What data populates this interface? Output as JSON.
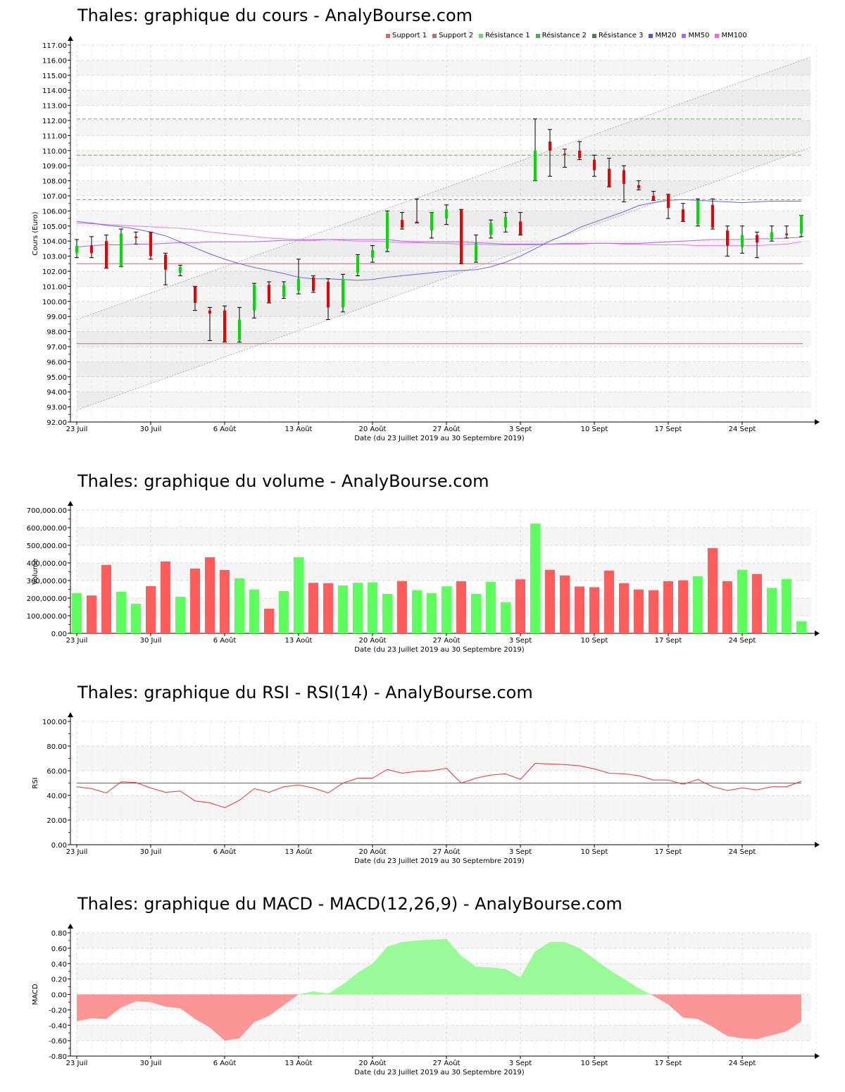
{
  "titles": {
    "price": "Thales: graphique du cours - AnalyBourse.com",
    "volume": "Thales: graphique du volume - AnalyBourse.com",
    "rsi": "Thales: graphique du RSI - RSI(14) - AnalyBourse.com",
    "macd": "Thales: graphique du MACD - MACD(12,26,9) - AnalyBourse.com"
  },
  "x_axis": {
    "label": "Date (du 23 Juillet 2019 au 30 Septembre 2019)",
    "ticks": [
      {
        "label": "23 Juil",
        "index": 0
      },
      {
        "label": "30 Juil",
        "index": 5
      },
      {
        "label": "6 Août",
        "index": 10
      },
      {
        "label": "13 Août",
        "index": 15
      },
      {
        "label": "20 Août",
        "index": 20
      },
      {
        "label": "27 Août",
        "index": 25
      },
      {
        "label": "3 Sept",
        "index": 30
      },
      {
        "label": "10 Sept",
        "index": 35
      },
      {
        "label": "17 Sept",
        "index": 40
      },
      {
        "label": "24 Sept",
        "index": 45
      }
    ]
  },
  "legend": [
    {
      "label": "Support 1",
      "color": "#d46a6a"
    },
    {
      "label": "Support 2",
      "color": "#b87070"
    },
    {
      "label": "Résistance 1",
      "color": "#66dd66"
    },
    {
      "label": "Résistance 2",
      "color": "#55aa55"
    },
    {
      "label": "Résistance 3",
      "color": "#448844"
    },
    {
      "label": "MM20",
      "color": "#5555ee"
    },
    {
      "label": "MM50",
      "color": "#aa66ee"
    },
    {
      "label": "MM100",
      "color": "#ee66ee"
    }
  ],
  "colors": {
    "up": "#00dd00",
    "down": "#ee0000",
    "vol_up": "#5cff5c",
    "vol_down": "#ff5c5c",
    "rsi_line": "#ee3333",
    "macd_pos": "#98fb98",
    "macd_neg": "#fa9696",
    "support": "#c07070",
    "resistance": "#66aa66"
  },
  "chart_data": [
    {
      "type": "candlestick",
      "title": "Thales: graphique du cours - AnalyBourse.com",
      "xlabel": "Date (du 23 Juillet 2019 au 30 Septembre 2019)",
      "ylabel": "Cours (Euro)",
      "ylim": [
        92,
        117
      ],
      "yticks": [
        "92.00",
        "93.00",
        "94.00",
        "95.00",
        "96.00",
        "97.00",
        "98.00",
        "99.00",
        "100.00",
        "101.00",
        "102.00",
        "103.00",
        "104.00",
        "105.00",
        "106.00",
        "107.00",
        "108.00",
        "109.00",
        "110.00",
        "111.00",
        "112.00",
        "113.00",
        "114.00",
        "115.00",
        "116.00",
        "117.00"
      ],
      "support_levels": [
        102.5,
        97.2
      ],
      "resistance_levels": [
        106.75,
        109.7,
        112.1
      ],
      "channel": {
        "upper_start": 98.8,
        "upper_end": 116.2,
        "lower_start": 92.8,
        "lower_end": 110.2
      },
      "candles": [
        {
          "o": 103.2,
          "h": 104.1,
          "l": 102.9,
          "c": 103.7
        },
        {
          "o": 103.7,
          "h": 104.3,
          "l": 102.9,
          "c": 103.2
        },
        {
          "o": 104.0,
          "h": 104.4,
          "l": 102.2,
          "c": 102.2
        },
        {
          "o": 102.3,
          "h": 104.8,
          "l": 102.3,
          "c": 104.5
        },
        {
          "o": 104.3,
          "h": 104.6,
          "l": 103.8,
          "c": 104.2
        },
        {
          "o": 104.6,
          "h": 104.6,
          "l": 102.8,
          "c": 103.0
        },
        {
          "o": 103.1,
          "h": 103.2,
          "l": 101.1,
          "c": 102.1
        },
        {
          "o": 101.9,
          "h": 102.4,
          "l": 101.7,
          "c": 102.3
        },
        {
          "o": 101.0,
          "h": 101.0,
          "l": 99.4,
          "c": 99.9
        },
        {
          "o": 99.4,
          "h": 99.6,
          "l": 97.4,
          "c": 99.2
        },
        {
          "o": 99.4,
          "h": 99.7,
          "l": 97.3,
          "c": 97.3
        },
        {
          "o": 97.4,
          "h": 99.6,
          "l": 97.3,
          "c": 98.8
        },
        {
          "o": 99.4,
          "h": 101.2,
          "l": 98.9,
          "c": 101.1
        },
        {
          "o": 101.1,
          "h": 101.3,
          "l": 99.9,
          "c": 99.9
        },
        {
          "o": 100.3,
          "h": 101.3,
          "l": 100.2,
          "c": 101.1
        },
        {
          "o": 100.7,
          "h": 102.8,
          "l": 100.5,
          "c": 101.5
        },
        {
          "o": 101.6,
          "h": 101.7,
          "l": 100.6,
          "c": 100.7
        },
        {
          "o": 101.3,
          "h": 101.5,
          "l": 98.8,
          "c": 99.6
        },
        {
          "o": 99.6,
          "h": 101.8,
          "l": 99.3,
          "c": 101.5
        },
        {
          "o": 101.9,
          "h": 103.1,
          "l": 101.7,
          "c": 103.0
        },
        {
          "o": 102.9,
          "h": 103.7,
          "l": 102.6,
          "c": 103.4
        },
        {
          "o": 103.5,
          "h": 106.0,
          "l": 103.3,
          "c": 105.9
        },
        {
          "o": 105.4,
          "h": 105.9,
          "l": 104.8,
          "c": 104.9
        },
        {
          "o": 105.3,
          "h": 106.8,
          "l": 105.2,
          "c": 105.2
        },
        {
          "o": 104.7,
          "h": 105.9,
          "l": 104.2,
          "c": 105.9
        },
        {
          "o": 105.5,
          "h": 106.4,
          "l": 105.1,
          "c": 106.1
        },
        {
          "o": 106.1,
          "h": 106.1,
          "l": 102.5,
          "c": 102.5
        },
        {
          "o": 102.7,
          "h": 104.4,
          "l": 102.6,
          "c": 103.9
        },
        {
          "o": 104.4,
          "h": 105.4,
          "l": 104.2,
          "c": 105.2
        },
        {
          "o": 104.9,
          "h": 105.9,
          "l": 104.6,
          "c": 105.6
        },
        {
          "o": 105.3,
          "h": 105.9,
          "l": 104.4,
          "c": 104.4
        },
        {
          "o": 108.0,
          "h": 112.1,
          "l": 108.0,
          "c": 110.0
        },
        {
          "o": 110.6,
          "h": 111.4,
          "l": 108.3,
          "c": 110.0
        },
        {
          "o": 109.8,
          "h": 110.1,
          "l": 108.9,
          "c": 109.7
        },
        {
          "o": 110.0,
          "h": 110.6,
          "l": 109.4,
          "c": 109.5
        },
        {
          "o": 109.4,
          "h": 109.7,
          "l": 108.3,
          "c": 108.7
        },
        {
          "o": 108.8,
          "h": 109.5,
          "l": 107.6,
          "c": 107.6
        },
        {
          "o": 108.7,
          "h": 109.0,
          "l": 106.6,
          "c": 107.8
        },
        {
          "o": 107.7,
          "h": 108.0,
          "l": 107.4,
          "c": 107.5
        },
        {
          "o": 107.0,
          "h": 107.3,
          "l": 106.7,
          "c": 106.7
        },
        {
          "o": 107.1,
          "h": 107.1,
          "l": 105.5,
          "c": 106.2
        },
        {
          "o": 106.1,
          "h": 106.5,
          "l": 105.3,
          "c": 105.3
        },
        {
          "o": 105.1,
          "h": 106.8,
          "l": 105.0,
          "c": 106.7
        },
        {
          "o": 106.4,
          "h": 106.8,
          "l": 104.8,
          "c": 104.9
        },
        {
          "o": 104.7,
          "h": 105.0,
          "l": 103.0,
          "c": 103.7
        },
        {
          "o": 103.6,
          "h": 105.0,
          "l": 103.2,
          "c": 104.4
        },
        {
          "o": 104.4,
          "h": 104.6,
          "l": 102.9,
          "c": 103.9
        },
        {
          "o": 104.1,
          "h": 105.0,
          "l": 104.0,
          "c": 104.6
        },
        {
          "o": 104.5,
          "h": 105.0,
          "l": 104.2,
          "c": 104.4
        },
        {
          "o": 104.5,
          "h": 105.7,
          "l": 104.3,
          "c": 105.7
        }
      ],
      "mm20": [
        105.3,
        105.2,
        105.05,
        104.95,
        104.8,
        104.6,
        104.35,
        103.95,
        103.55,
        103.15,
        102.8,
        102.5,
        102.25,
        102.05,
        101.85,
        101.6,
        101.5,
        101.5,
        101.45,
        101.4,
        101.45,
        101.6,
        101.7,
        101.8,
        101.9,
        102.0,
        102.05,
        102.1,
        102.3,
        102.6,
        103.0,
        103.5,
        104.0,
        104.4,
        104.9,
        105.25,
        105.6,
        105.95,
        106.35,
        106.55,
        106.7,
        106.75,
        106.7,
        106.65,
        106.6,
        106.55,
        106.6,
        106.65,
        106.65,
        106.65
      ],
      "mm50": [
        103.6,
        103.7,
        103.75,
        103.75,
        103.8,
        103.8,
        103.85,
        103.9,
        103.9,
        103.95,
        103.95,
        103.95,
        103.95,
        104.0,
        104.05,
        104.05,
        104.05,
        104.1,
        104.1,
        104.1,
        104.1,
        104.1,
        104.0,
        103.95,
        103.95,
        103.95,
        103.95,
        103.9,
        103.85,
        103.8,
        103.8,
        103.8,
        103.8,
        103.85,
        103.85,
        103.85,
        103.85,
        103.85,
        103.85,
        103.9,
        103.95,
        104.0,
        104.05,
        104.1,
        104.1,
        104.1,
        104.15,
        104.15,
        104.2,
        104.25
      ],
      "mm100": [
        105.2,
        105.15,
        105.1,
        105.05,
        105.0,
        104.95,
        104.9,
        104.85,
        104.75,
        104.6,
        104.5,
        104.4,
        104.3,
        104.2,
        104.15,
        104.1,
        104.1,
        104.1,
        104.05,
        104.0,
        104.0,
        103.95,
        103.9,
        103.9,
        103.85,
        103.85,
        103.8,
        103.8,
        103.75,
        103.75,
        103.75,
        103.75,
        103.8,
        103.8,
        103.8,
        103.85,
        103.85,
        103.8,
        103.8,
        103.75,
        103.75,
        103.75,
        103.7,
        103.7,
        103.7,
        103.7,
        103.7,
        103.75,
        103.8,
        103.95
      ]
    },
    {
      "type": "bar",
      "title": "Thales: graphique du volume - AnalyBourse.com",
      "xlabel": "Date (du 23 Juillet 2019 au 30 Septembre 2019)",
      "ylabel": "Volume",
      "ylim": [
        0,
        700000
      ],
      "yticks": [
        "0.00",
        "100,000.00",
        "200,000.00",
        "300,000.00",
        "400,000.00",
        "500,000.00",
        "600,000.00",
        "700,000.00"
      ],
      "values": [
        228000,
        215000,
        388000,
        236000,
        168000,
        268000,
        408000,
        208000,
        368000,
        432000,
        360000,
        312000,
        249000,
        140000,
        240000,
        432000,
        287000,
        285000,
        272000,
        287000,
        290000,
        224000,
        297000,
        245000,
        228000,
        267000,
        296000,
        224000,
        292000,
        177000,
        307000,
        623000,
        361000,
        329000,
        266000,
        262000,
        356000,
        285000,
        249000,
        245000,
        296000,
        301000,
        324000,
        484000,
        296000,
        361000,
        337000,
        258000,
        308000,
        68000
      ],
      "direction": [
        "up",
        "down",
        "down",
        "up",
        "up",
        "down",
        "down",
        "up",
        "down",
        "down",
        "down",
        "up",
        "up",
        "down",
        "up",
        "up",
        "down",
        "down",
        "up",
        "up",
        "up",
        "up",
        "down",
        "up",
        "up",
        "up",
        "down",
        "up",
        "up",
        "up",
        "down",
        "up",
        "down",
        "down",
        "down",
        "down",
        "down",
        "down",
        "down",
        "down",
        "down",
        "down",
        "up",
        "down",
        "down",
        "up",
        "down",
        "up",
        "up",
        "up"
      ]
    },
    {
      "type": "line",
      "title": "Thales: graphique du RSI - RSI(14) - AnalyBourse.com",
      "xlabel": "Date (du 23 Juillet 2019 au 30 Septembre 2019)",
      "ylabel": "RSI",
      "ylim": [
        0,
        100
      ],
      "yticks": [
        "0.00",
        "20.00",
        "40.00",
        "60.00",
        "80.00",
        "100.00"
      ],
      "reference_line": 50,
      "values": [
        47,
        45.5,
        42,
        51,
        50.5,
        46,
        42.5,
        43.5,
        35.5,
        34,
        30,
        36,
        45.5,
        42.5,
        47,
        48.5,
        46,
        42,
        50,
        54,
        54,
        61,
        58,
        59.5,
        60,
        62,
        50,
        54,
        56.5,
        57.5,
        53,
        66,
        65.5,
        65,
        64,
        61.5,
        58,
        57.5,
        56,
        52.5,
        52.5,
        49,
        53,
        47,
        44,
        46,
        44.5,
        47,
        47,
        51.5
      ]
    },
    {
      "type": "area",
      "title": "Thales: graphique du MACD - MACD(12,26,9) - AnalyBourse.com",
      "xlabel": "Date (du 23 Juillet 2019 au 30 Septembre 2019)",
      "ylabel": "MACD",
      "ylim": [
        -0.8,
        0.8
      ],
      "yticks": [
        "-0.80",
        "-0.60",
        "-0.40",
        "-0.20",
        "0.00",
        "0.20",
        "0.40",
        "0.60",
        "0.80"
      ],
      "values": [
        -0.35,
        -0.31,
        -0.32,
        -0.17,
        -0.09,
        -0.1,
        -0.16,
        -0.18,
        -0.32,
        -0.43,
        -0.6,
        -0.57,
        -0.36,
        -0.28,
        -0.14,
        0.0,
        0.04,
        0.01,
        0.13,
        0.28,
        0.4,
        0.62,
        0.68,
        0.7,
        0.71,
        0.72,
        0.5,
        0.36,
        0.35,
        0.33,
        0.22,
        0.56,
        0.68,
        0.68,
        0.6,
        0.46,
        0.32,
        0.2,
        0.08,
        -0.02,
        -0.13,
        -0.3,
        -0.32,
        -0.42,
        -0.54,
        -0.57,
        -0.58,
        -0.53,
        -0.48,
        -0.35
      ]
    }
  ]
}
